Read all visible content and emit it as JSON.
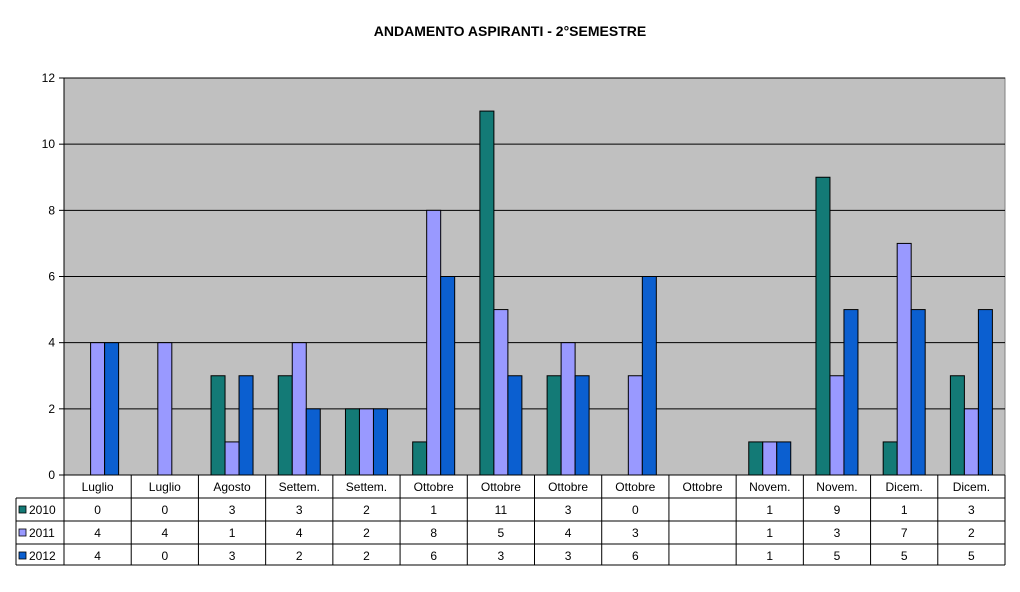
{
  "chart_data": {
    "type": "bar",
    "title": "ANDAMENTO ASPIRANTI  -  2°SEMESTRE",
    "categories": [
      "Luglio",
      "Luglio",
      "Agosto",
      "Settem.",
      "Settem.",
      "Ottobre",
      "Ottobre",
      "Ottobre",
      "Ottobre",
      "Ottobre",
      "Novem.",
      "Novem.",
      "Dicem.",
      "Dicem."
    ],
    "series": [
      {
        "name": "2010",
        "color": "#137A76",
        "values": [
          0,
          0,
          3,
          3,
          2,
          1,
          11,
          3,
          0,
          null,
          1,
          9,
          1,
          3
        ]
      },
      {
        "name": "2011",
        "color": "#9999FF",
        "values": [
          4,
          4,
          1,
          4,
          2,
          8,
          5,
          4,
          3,
          null,
          1,
          3,
          7,
          2
        ]
      },
      {
        "name": "2012",
        "color": "#0B5FD0",
        "values": [
          4,
          0,
          3,
          2,
          2,
          6,
          3,
          3,
          6,
          null,
          1,
          5,
          5,
          5
        ]
      }
    ],
    "yticks": [
      0,
      2,
      4,
      6,
      8,
      10,
      12
    ],
    "ylim": [
      0,
      12
    ],
    "grid": true,
    "plot_background": "#C0C0C0",
    "legend": "data-table-left"
  }
}
